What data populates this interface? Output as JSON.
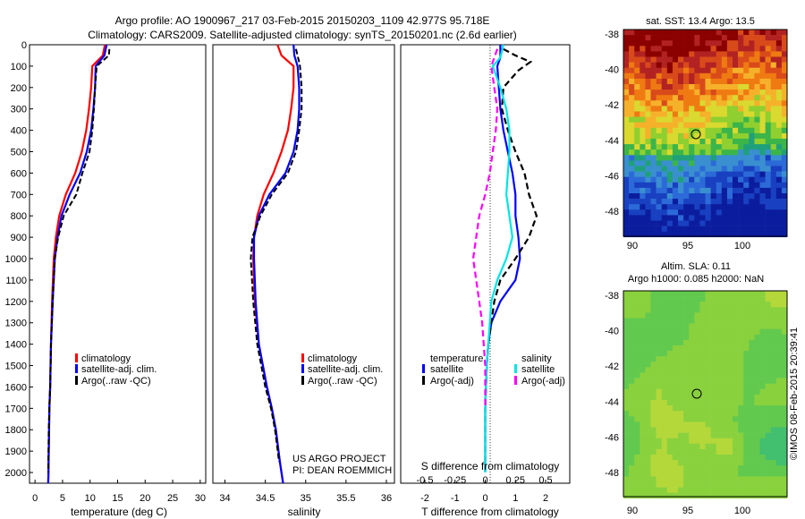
{
  "header": {
    "line1": "Argo profile: AO 1900967_217 03-Feb-2015 20150203_1109 42.977S 95.718E",
    "line2": "Climatology: CARS2009. Satellite-adjusted climatology: synTS_20150201.nc (2.6d earlier)"
  },
  "colors": {
    "climatology": "#ff0000",
    "satellite": "#0000ff",
    "argo": "#000000",
    "sal_satellite": "#00e5e5",
    "sal_argo": "#ff00ff"
  },
  "depth_ticks": [
    "0",
    "100",
    "200",
    "300",
    "400",
    "500",
    "600",
    "700",
    "800",
    "900",
    "1000",
    "1100",
    "1200",
    "1300",
    "1400",
    "1500",
    "1600",
    "1700",
    "1800",
    "1900",
    "2000"
  ],
  "panels": {
    "temperature": {
      "xlabel": "temperature (deg C)",
      "xticks": [
        "0",
        "5",
        "10",
        "15",
        "20",
        "25",
        "30"
      ],
      "legend": [
        "climatology",
        "satellite-adj. clim.",
        "Argo(..raw -QC)"
      ]
    },
    "salinity": {
      "xlabel": "salinity",
      "xticks": [
        "34",
        "34.5",
        "35",
        "35.5",
        "36"
      ],
      "legend": [
        "climatology",
        "satellite-adj. clim.",
        "Argo(..raw -QC)"
      ],
      "credit1": "US ARGO PROJECT",
      "credit2": "PI: DEAN ROEMMICH"
    },
    "difference": {
      "xlabel": "T difference from climatology",
      "xticks": [
        "-2",
        "-1",
        "0",
        "1",
        "2"
      ],
      "top_label": "S difference from climatology",
      "top_ticks": [
        "-0.5",
        "-0.25",
        "0",
        "0.25",
        "0.5"
      ],
      "legend_t_title": "temperature",
      "legend_s_title": "salinity",
      "legend_t": [
        "satellite",
        "Argo(-adj)"
      ],
      "legend_s": [
        "satellite",
        "Argo(-adj)"
      ]
    }
  },
  "maps": {
    "sst_title": "sat. SST: 13.4  Argo: 13.5",
    "sla_title1": "Altim. SLA: 0.11",
    "sla_title2": "Argo h1000: 0.085 h2000: NaN",
    "yticks": [
      "-38",
      "-40",
      "-42",
      "-44",
      "-46",
      "-48"
    ],
    "xticks": [
      "90",
      "95",
      "100"
    ],
    "side_label": "©IMOS 08-Feb-2015 20:39:41"
  },
  "chart_data": [
    {
      "type": "line",
      "title": "",
      "xlabel": "temperature (deg C)",
      "ylabel": "",
      "xlim": [
        -1,
        31
      ],
      "ylim": [
        2050,
        0
      ],
      "series": [
        {
          "name": "climatology",
          "x": [
            12.7,
            12.3,
            10.4,
            10.2,
            9.8,
            9.3,
            8.5,
            7.3,
            5.6,
            4.4,
            3.8,
            3.4,
            3.1,
            2.9,
            2.75,
            2.6,
            2.55,
            2.5,
            2.45,
            2.4
          ],
          "depth": [
            0,
            50,
            100,
            200,
            300,
            400,
            500,
            600,
            700,
            800,
            900,
            1000,
            1200,
            1400,
            1600,
            1700,
            1800,
            1900,
            2000,
            2050
          ]
        },
        {
          "name": "satellite-adj. clim.",
          "x": [
            13.0,
            12.6,
            11.0,
            10.9,
            10.6,
            10.2,
            9.4,
            8.2,
            6.3,
            4.8,
            4.1,
            3.6,
            3.2,
            2.9,
            2.75,
            2.6,
            2.55,
            2.5,
            2.45,
            2.4
          ],
          "depth": [
            0,
            50,
            100,
            200,
            300,
            400,
            500,
            600,
            700,
            800,
            900,
            1000,
            1200,
            1400,
            1600,
            1700,
            1800,
            1900,
            2000,
            2050
          ]
        },
        {
          "name": "Argo(..raw -QC)",
          "x": [
            13.5,
            13.4,
            11.2,
            10.9,
            10.7,
            10.4,
            9.9,
            8.6,
            7.5,
            5.2,
            4.2,
            3.6,
            3.2,
            2.9,
            2.75,
            2.6,
            2.5,
            2.45,
            2.4
          ],
          "depth": [
            20,
            50,
            100,
            200,
            300,
            400,
            500,
            600,
            700,
            800,
            900,
            1000,
            1200,
            1400,
            1600,
            1700,
            1800,
            1900,
            2000
          ]
        }
      ]
    },
    {
      "type": "line",
      "title": "",
      "xlabel": "salinity",
      "ylabel": "",
      "xlim": [
        33.85,
        36.1
      ],
      "ylim": [
        2050,
        0
      ],
      "series": [
        {
          "name": "climatology",
          "x": [
            34.65,
            34.7,
            34.85,
            34.85,
            34.82,
            34.78,
            34.7,
            34.6,
            34.48,
            34.4,
            34.36,
            34.35,
            34.37,
            34.42,
            34.52,
            34.58,
            34.63,
            34.68,
            34.72
          ],
          "depth": [
            0,
            50,
            100,
            200,
            300,
            400,
            500,
            600,
            700,
            800,
            900,
            1000,
            1200,
            1400,
            1600,
            1700,
            1800,
            1950,
            2050
          ]
        },
        {
          "name": "satellite-adj. clim.",
          "x": [
            34.85,
            34.86,
            34.9,
            34.92,
            34.92,
            34.9,
            34.85,
            34.75,
            34.55,
            34.42,
            34.36,
            34.36,
            34.38,
            34.42,
            34.52,
            34.58,
            34.63,
            34.68,
            34.72
          ],
          "depth": [
            0,
            50,
            100,
            200,
            300,
            400,
            500,
            600,
            700,
            800,
            900,
            1000,
            1200,
            1400,
            1600,
            1700,
            1800,
            1950,
            2050
          ]
        },
        {
          "name": "Argo(..raw -QC)",
          "x": [
            34.88,
            34.9,
            34.93,
            34.95,
            34.95,
            34.92,
            34.88,
            34.78,
            34.58,
            34.44,
            34.34,
            34.32,
            34.35,
            34.4,
            34.5,
            34.57,
            34.62,
            34.67
          ],
          "depth": [
            20,
            50,
            100,
            200,
            300,
            400,
            500,
            600,
            700,
            800,
            900,
            1000,
            1200,
            1400,
            1600,
            1700,
            1800,
            1950
          ]
        }
      ]
    },
    {
      "type": "line",
      "title": "",
      "xlabel": "T difference from climatology",
      "ylabel": "",
      "xlim": [
        -2.8,
        2.8
      ],
      "ylim": [
        2050,
        0
      ],
      "series": [
        {
          "name": "temperature satellite",
          "x": [
            0.5,
            0.5,
            0.4,
            0.45,
            0.5,
            0.6,
            0.75,
            0.9,
            1.0,
            1.0,
            1.1,
            1.15,
            1.0,
            0.5,
            0.2,
            0.1,
            0.05,
            0.0,
            0.0
          ],
          "depth": [
            0,
            60,
            100,
            200,
            300,
            400,
            500,
            600,
            700,
            800,
            900,
            1000,
            1100,
            1200,
            1300,
            1400,
            1500,
            1700,
            2000
          ]
        },
        {
          "name": "temperature Argo(-adj)",
          "x": [
            0.6,
            1.0,
            1.5,
            1.1,
            0.6,
            0.55,
            0.75,
            1.0,
            1.3,
            1.45,
            1.7,
            1.45,
            1.0,
            0.5,
            0.3,
            0.2,
            0.1,
            0.05,
            0.0,
            0.0
          ],
          "depth": [
            20,
            50,
            80,
            120,
            200,
            300,
            400,
            500,
            600,
            700,
            800,
            900,
            1000,
            1100,
            1200,
            1300,
            1400,
            1500,
            1700,
            2000
          ]
        },
        {
          "name": "salinity satellite",
          "x": [
            0.6,
            0.5,
            0.25,
            0.5,
            0.7,
            0.8,
            0.8,
            0.75,
            0.7,
            0.8,
            0.9,
            0.7,
            0.4,
            0.2,
            0.1,
            0.05,
            0.0,
            0.0
          ],
          "depth": [
            0,
            60,
            100,
            200,
            300,
            400,
            500,
            600,
            700,
            800,
            900,
            1000,
            1100,
            1200,
            1400,
            1500,
            1700,
            2000
          ]
        },
        {
          "name": "salinity Argo(-adj)",
          "x": [
            0.4,
            0.2,
            0.3,
            0.4,
            0.35,
            0.25,
            0.15,
            0.0,
            -0.2,
            -0.3,
            -0.4,
            -0.3,
            -0.2,
            -0.1,
            -0.05,
            0.0,
            0.0
          ],
          "depth": [
            20,
            100,
            200,
            300,
            400,
            500,
            600,
            700,
            800,
            900,
            1000,
            1100,
            1200,
            1300,
            1400,
            1500,
            1700
          ]
        }
      ]
    }
  ]
}
